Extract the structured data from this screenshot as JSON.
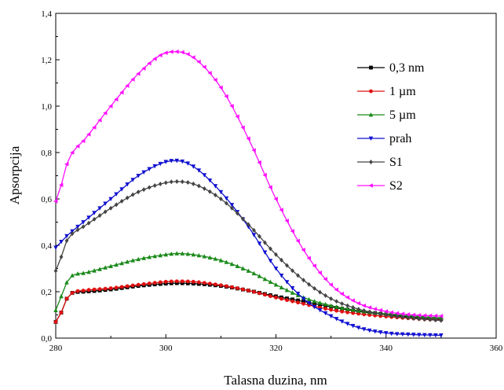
{
  "chart_data": {
    "type": "line",
    "title": "",
    "xlabel": "Talasna duzina, nm",
    "ylabel": "Apsorpcija",
    "xlim": [
      280,
      360
    ],
    "ylim": [
      0.0,
      1.4
    ],
    "x_ticks": [
      "280",
      "300",
      "320",
      "340",
      "360"
    ],
    "y_ticks": [
      "0,0",
      "0,2",
      "0,4",
      "0,6",
      "0,8",
      "1,0",
      "1,2",
      "1,4"
    ],
    "grid": false,
    "legend_position": "top-right",
    "series": [
      {
        "name": "0,3 nm",
        "color": "#000000",
        "marker": "square",
        "x": [
          280,
          281,
          282,
          283,
          285,
          290,
          295,
          300,
          302,
          305,
          310,
          315,
          320,
          325,
          330,
          335,
          340,
          345,
          350
        ],
        "y": [
          0.07,
          0.11,
          0.17,
          0.195,
          0.2,
          0.21,
          0.225,
          0.235,
          0.237,
          0.235,
          0.225,
          0.205,
          0.18,
          0.158,
          0.135,
          0.115,
          0.102,
          0.09,
          0.082
        ]
      },
      {
        "name": "1 µm",
        "color": "#e01010",
        "marker": "circle",
        "x": [
          280,
          281,
          282,
          283,
          285,
          290,
          295,
          300,
          302,
          305,
          310,
          315,
          320,
          325,
          330,
          335,
          340,
          345,
          350
        ],
        "y": [
          0.07,
          0.11,
          0.17,
          0.195,
          0.205,
          0.215,
          0.23,
          0.243,
          0.245,
          0.243,
          0.228,
          0.205,
          0.175,
          0.148,
          0.122,
          0.105,
          0.093,
          0.084,
          0.078
        ]
      },
      {
        "name": "5 µm",
        "color": "#1a8a1a",
        "marker": "triangle-up",
        "x": [
          280,
          281,
          282,
          283,
          285,
          290,
          295,
          300,
          302,
          305,
          310,
          315,
          320,
          325,
          330,
          335,
          340,
          345,
          350
        ],
        "y": [
          0.12,
          0.18,
          0.24,
          0.27,
          0.28,
          0.31,
          0.34,
          0.36,
          0.365,
          0.36,
          0.335,
          0.29,
          0.23,
          0.175,
          0.14,
          0.118,
          0.105,
          0.095,
          0.088
        ]
      },
      {
        "name": "prah",
        "color": "#1010d0",
        "marker": "triangle-down",
        "x": [
          280,
          282,
          285,
          290,
          295,
          300,
          302,
          305,
          310,
          315,
          320,
          325,
          330,
          335,
          340,
          345,
          350
        ],
        "y": [
          0.39,
          0.44,
          0.5,
          0.6,
          0.7,
          0.76,
          0.765,
          0.74,
          0.63,
          0.48,
          0.3,
          0.17,
          0.095,
          0.045,
          0.022,
          0.015,
          0.012
        ]
      },
      {
        "name": "S1",
        "color": "#444444",
        "marker": "diamond",
        "x": [
          280,
          281,
          282,
          283,
          285,
          290,
          295,
          300,
          302,
          305,
          310,
          315,
          320,
          325,
          330,
          335,
          340,
          345,
          350
        ],
        "y": [
          0.29,
          0.35,
          0.42,
          0.45,
          0.48,
          0.56,
          0.63,
          0.67,
          0.675,
          0.665,
          0.6,
          0.49,
          0.36,
          0.25,
          0.17,
          0.125,
          0.1,
          0.085,
          0.076
        ]
      },
      {
        "name": "S2",
        "color": "#ff10ff",
        "marker": "triangle-left",
        "x": [
          280,
          281,
          282,
          283,
          285,
          290,
          295,
          300,
          302,
          305,
          310,
          315,
          320,
          325,
          330,
          335,
          340,
          345,
          350
        ],
        "y": [
          0.59,
          0.66,
          0.75,
          0.8,
          0.85,
          1.0,
          1.14,
          1.23,
          1.235,
          1.21,
          1.08,
          0.86,
          0.6,
          0.38,
          0.23,
          0.15,
          0.115,
          0.1,
          0.095
        ]
      }
    ]
  }
}
